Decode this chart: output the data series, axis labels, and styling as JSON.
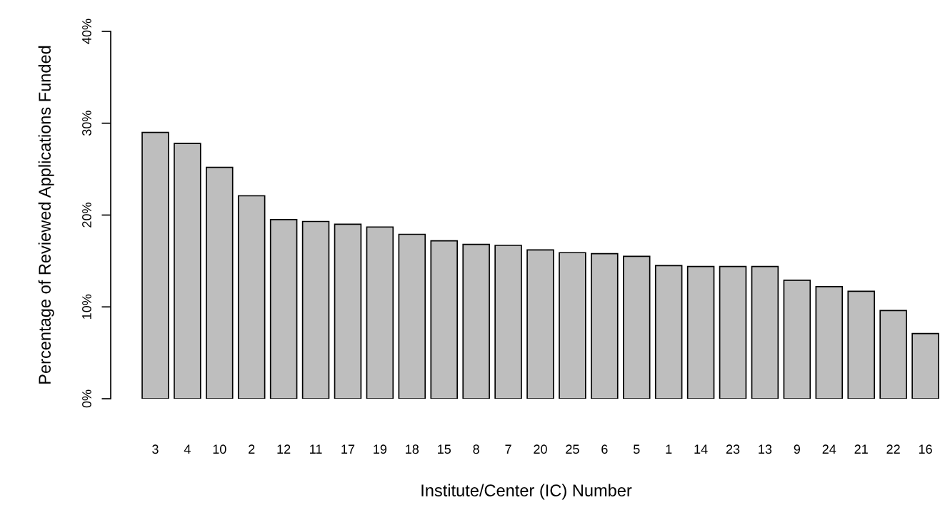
{
  "chart_data": {
    "type": "bar",
    "xlabel": "Institute/Center (IC) Number",
    "ylabel": "Percentage of Reviewed Applications Funded",
    "categories": [
      "3",
      "4",
      "10",
      "2",
      "12",
      "11",
      "17",
      "19",
      "18",
      "15",
      "8",
      "7",
      "20",
      "25",
      "6",
      "5",
      "1",
      "14",
      "23",
      "13",
      "9",
      "24",
      "21",
      "22",
      "16"
    ],
    "values": [
      29.0,
      27.8,
      25.2,
      22.1,
      19.5,
      19.3,
      19.0,
      18.7,
      17.9,
      17.2,
      16.8,
      16.7,
      16.2,
      15.9,
      15.8,
      15.5,
      14.5,
      14.4,
      14.4,
      14.4,
      12.9,
      12.2,
      11.7,
      9.6,
      7.1
    ],
    "color": "#bebebe",
    "ylim": [
      0,
      40
    ],
    "yticks": [
      {
        "value": 0,
        "label": "0%"
      },
      {
        "value": 10,
        "label": "10%"
      },
      {
        "value": 20,
        "label": "20%"
      },
      {
        "value": 30,
        "label": "30%"
      },
      {
        "value": 40,
        "label": "40%"
      }
    ],
    "grid": false
  }
}
